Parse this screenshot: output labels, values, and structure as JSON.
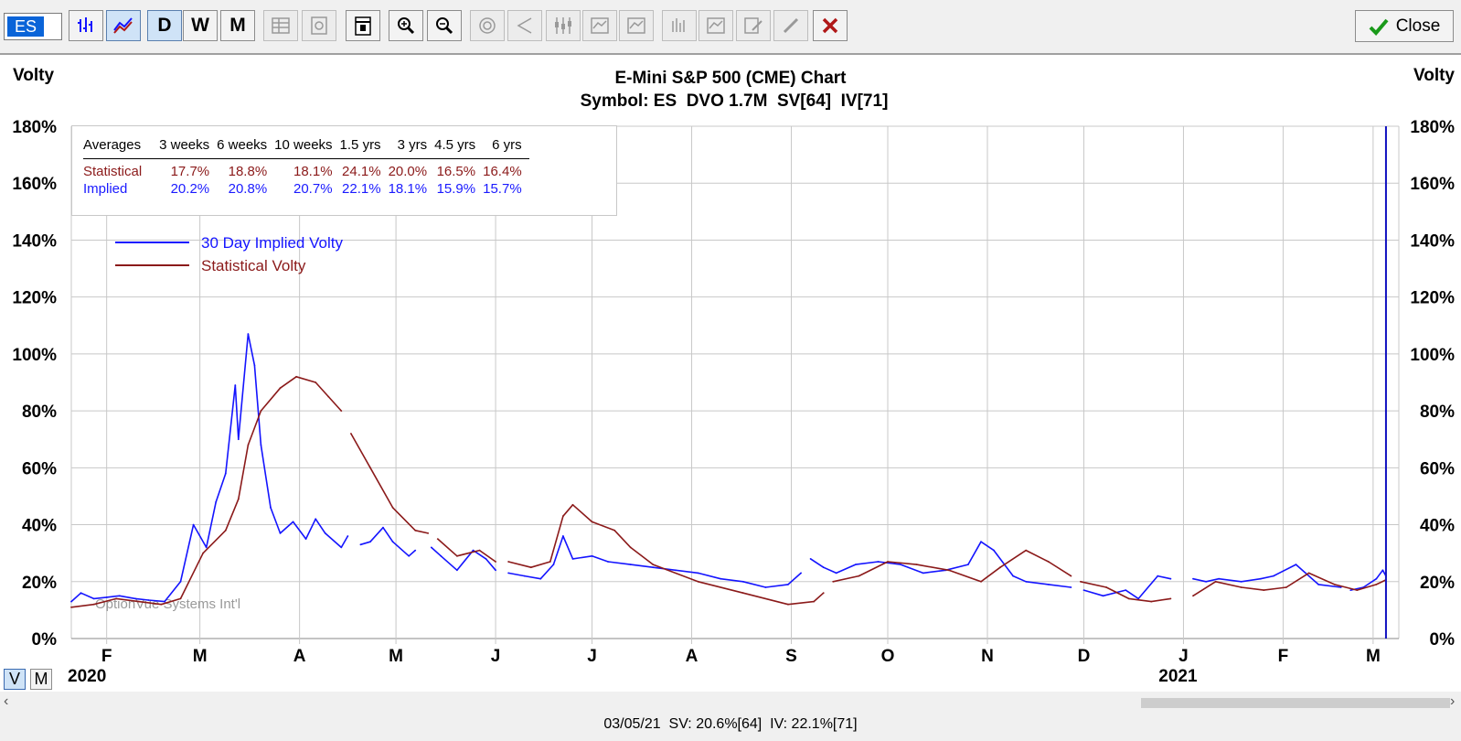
{
  "toolbar": {
    "symbol": "ES",
    "buttons": [
      {
        "name": "bar-chart-button",
        "icon": "bar-chart-icon",
        "label": "",
        "state": "normal"
      },
      {
        "name": "line-chart-button",
        "icon": "volatility-lines-icon",
        "label": "",
        "state": "pressed"
      },
      {
        "name": "daily-button",
        "icon": "",
        "label": "D",
        "state": "pressed"
      },
      {
        "name": "weekly-button",
        "icon": "",
        "label": "W",
        "state": "normal"
      },
      {
        "name": "monthly-button",
        "icon": "",
        "label": "M",
        "state": "normal"
      },
      {
        "name": "table-button",
        "icon": "table-icon",
        "label": "",
        "state": "disabled"
      },
      {
        "name": "settings-button",
        "icon": "gear-doc-icon",
        "label": "",
        "state": "disabled"
      },
      {
        "name": "calendar-button",
        "icon": "calendar-icon",
        "label": "",
        "state": "normal"
      },
      {
        "name": "zoom-in-button",
        "icon": "zoom-in-icon",
        "label": "",
        "state": "normal"
      },
      {
        "name": "zoom-out-button",
        "icon": "zoom-out-icon",
        "label": "",
        "state": "normal"
      },
      {
        "name": "target-button",
        "icon": "target-icon",
        "label": "",
        "state": "disabled"
      },
      {
        "name": "angle-button",
        "icon": "angle-icon",
        "label": "",
        "state": "disabled"
      },
      {
        "name": "candles-button",
        "icon": "candles-icon",
        "label": "",
        "state": "disabled"
      },
      {
        "name": "study-button-1",
        "icon": "study-icon",
        "label": "",
        "state": "disabled"
      },
      {
        "name": "study-button-2",
        "icon": "study-icon",
        "label": "",
        "state": "disabled"
      },
      {
        "name": "bars-button",
        "icon": "bars-icon",
        "label": "",
        "state": "disabled"
      },
      {
        "name": "study-button-3",
        "icon": "study-icon",
        "label": "",
        "state": "disabled"
      },
      {
        "name": "edit-button",
        "icon": "edit-doc-icon",
        "label": "",
        "state": "disabled"
      },
      {
        "name": "pencil-button",
        "icon": "pencil-icon",
        "label": "",
        "state": "disabled"
      },
      {
        "name": "delete-button",
        "icon": "red-x-icon",
        "label": "",
        "state": "normal"
      }
    ],
    "close_label": "Close"
  },
  "view_toggle": {
    "v_label": "V",
    "m_label": "M",
    "active": "V"
  },
  "status_text": "03/05/21  SV: 20.6%[64]  IV: 22.1%[71]",
  "watermark": "OptionVue Systems Int'l",
  "averages": {
    "header": [
      "Averages",
      "3 weeks",
      "6 weeks",
      "10 weeks",
      "1.5 yrs",
      "3 yrs",
      "4.5 yrs",
      "6 yrs"
    ],
    "rows": [
      {
        "label": "Statistical",
        "values": [
          "17.7%",
          "18.8%",
          "18.1%",
          "24.1%",
          "20.0%",
          "16.5%",
          "16.4%"
        ]
      },
      {
        "label": "Implied",
        "values": [
          "20.2%",
          "20.8%",
          "20.7%",
          "22.1%",
          "18.1%",
          "15.9%",
          "15.7%"
        ]
      }
    ]
  },
  "colors": {
    "implied": "#1414ff",
    "statistical": "#8b1a1a",
    "grid": "#c8c8c8",
    "cursor": "#1010c0"
  },
  "chart_data": {
    "type": "line",
    "title": "E-Mini S&P 500 (CME) Chart",
    "subtitle": "Symbol: ES  DVO 1.7M  SV[64]  IV[71]",
    "ylabel_left": "Volty",
    "ylabel_right": "Volty",
    "ylim": [
      0,
      180
    ],
    "y_ticks": [
      "0%",
      "20%",
      "40%",
      "60%",
      "80%",
      "100%",
      "120%",
      "140%",
      "160%",
      "180%"
    ],
    "x_range": [
      "2020-01-21",
      "2021-03-09"
    ],
    "x_month_ticks": [
      {
        "date": "2020-02-01",
        "label": "F"
      },
      {
        "date": "2020-03-01",
        "label": "M"
      },
      {
        "date": "2020-04-01",
        "label": "A"
      },
      {
        "date": "2020-05-01",
        "label": "M"
      },
      {
        "date": "2020-06-01",
        "label": "J"
      },
      {
        "date": "2020-07-01",
        "label": "J"
      },
      {
        "date": "2020-08-01",
        "label": "A"
      },
      {
        "date": "2020-09-01",
        "label": "S"
      },
      {
        "date": "2020-10-01",
        "label": "O"
      },
      {
        "date": "2020-11-01",
        "label": "N"
      },
      {
        "date": "2020-12-01",
        "label": "D"
      },
      {
        "date": "2021-01-01",
        "label": "J"
      },
      {
        "date": "2021-02-01",
        "label": "F"
      },
      {
        "date": "2021-03-01",
        "label": "M"
      }
    ],
    "year_labels": [
      {
        "date": "2020-01-21",
        "label": "2020"
      },
      {
        "date": "2021-01-01",
        "label": "2021"
      }
    ],
    "cursor_date": "2021-03-05",
    "legend_position": "top-left",
    "grid": true,
    "series": [
      {
        "name": "30 Day Implied Volty",
        "key": "implied",
        "segments": [
          [
            [
              "2020-01-21",
              13
            ],
            [
              "2020-01-24",
              16
            ],
            [
              "2020-01-28",
              14
            ],
            [
              "2020-02-01",
              14.5
            ],
            [
              "2020-02-05",
              15
            ],
            [
              "2020-02-10",
              14
            ],
            [
              "2020-02-14",
              13.5
            ],
            [
              "2020-02-19",
              13
            ],
            [
              "2020-02-24",
              20
            ],
            [
              "2020-02-28",
              40
            ],
            [
              "2020-03-03",
              32
            ],
            [
              "2020-03-06",
              48
            ],
            [
              "2020-03-09",
              58
            ],
            [
              "2020-03-12",
              89
            ],
            [
              "2020-03-13",
              70
            ],
            [
              "2020-03-16",
              107
            ],
            [
              "2020-03-18",
              96
            ],
            [
              "2020-03-20",
              68
            ],
            [
              "2020-03-23",
              46
            ],
            [
              "2020-03-26",
              37
            ],
            [
              "2020-03-30",
              41
            ],
            [
              "2020-04-03",
              35
            ],
            [
              "2020-04-06",
              42
            ],
            [
              "2020-04-09",
              37
            ],
            [
              "2020-04-14",
              32
            ],
            [
              "2020-04-16",
              36
            ]
          ],
          [
            [
              "2020-04-20",
              33
            ],
            [
              "2020-04-23",
              34
            ],
            [
              "2020-04-27",
              39
            ],
            [
              "2020-04-30",
              34
            ],
            [
              "2020-05-05",
              29
            ],
            [
              "2020-05-07",
              31
            ]
          ],
          [
            [
              "2020-05-12",
              32
            ],
            [
              "2020-05-15",
              29
            ],
            [
              "2020-05-20",
              24
            ],
            [
              "2020-05-25",
              31
            ],
            [
              "2020-05-29",
              28
            ],
            [
              "2020-06-01",
              24
            ]
          ],
          [
            [
              "2020-06-05",
              23
            ],
            [
              "2020-06-10",
              22
            ],
            [
              "2020-06-15",
              21
            ],
            [
              "2020-06-19",
              26
            ],
            [
              "2020-06-22",
              36
            ],
            [
              "2020-06-25",
              28
            ],
            [
              "2020-07-01",
              29
            ],
            [
              "2020-07-06",
              27
            ],
            [
              "2020-07-13",
              26
            ],
            [
              "2020-07-20",
              25
            ],
            [
              "2020-07-27",
              24
            ],
            [
              "2020-08-03",
              23
            ],
            [
              "2020-08-10",
              21
            ],
            [
              "2020-08-17",
              20
            ],
            [
              "2020-08-24",
              18
            ],
            [
              "2020-08-31",
              19
            ],
            [
              "2020-09-04",
              23
            ]
          ],
          [
            [
              "2020-09-07",
              28
            ],
            [
              "2020-09-11",
              25
            ],
            [
              "2020-09-15",
              23
            ],
            [
              "2020-09-21",
              26
            ],
            [
              "2020-09-28",
              27
            ],
            [
              "2020-10-05",
              26
            ],
            [
              "2020-10-12",
              23
            ],
            [
              "2020-10-19",
              24
            ],
            [
              "2020-10-26",
              26
            ],
            [
              "2020-10-30",
              34
            ],
            [
              "2020-11-03",
              31
            ],
            [
              "2020-11-09",
              22
            ],
            [
              "2020-11-13",
              20
            ],
            [
              "2020-11-20",
              19
            ],
            [
              "2020-11-27",
              18
            ]
          ],
          [
            [
              "2020-12-01",
              17
            ],
            [
              "2020-12-07",
              15
            ],
            [
              "2020-12-14",
              17
            ],
            [
              "2020-12-18",
              14
            ],
            [
              "2020-12-24",
              22
            ],
            [
              "2020-12-28",
              21
            ]
          ],
          [
            [
              "2021-01-04",
              21
            ],
            [
              "2021-01-08",
              20
            ],
            [
              "2021-01-12",
              21
            ],
            [
              "2021-01-19",
              20
            ],
            [
              "2021-01-25",
              21
            ],
            [
              "2021-01-29",
              22
            ],
            [
              "2021-02-05",
              26
            ],
            [
              "2021-02-12",
              19
            ],
            [
              "2021-02-19",
              18
            ]
          ],
          [
            [
              "2021-02-22",
              17
            ],
            [
              "2021-02-26",
              18
            ],
            [
              "2021-03-02",
              21
            ],
            [
              "2021-03-04",
              24
            ],
            [
              "2021-03-05",
              22
            ]
          ]
        ]
      },
      {
        "name": "Statistical Volty",
        "key": "statistical",
        "segments": [
          [
            [
              "2020-01-21",
              11
            ],
            [
              "2020-01-28",
              12
            ],
            [
              "2020-02-04",
              14
            ],
            [
              "2020-02-11",
              13
            ],
            [
              "2020-02-18",
              12
            ],
            [
              "2020-02-24",
              14
            ],
            [
              "2020-03-02",
              30
            ],
            [
              "2020-03-09",
              38
            ],
            [
              "2020-03-13",
              49
            ],
            [
              "2020-03-16",
              68
            ],
            [
              "2020-03-20",
              80
            ],
            [
              "2020-03-26",
              88
            ],
            [
              "2020-03-31",
              92
            ],
            [
              "2020-04-06",
              90
            ],
            [
              "2020-04-10",
              85
            ],
            [
              "2020-04-14",
              80
            ]
          ],
          [
            [
              "2020-04-17",
              72
            ],
            [
              "2020-04-23",
              60
            ],
            [
              "2020-04-30",
              46
            ],
            [
              "2020-05-07",
              38
            ],
            [
              "2020-05-11",
              37
            ]
          ],
          [
            [
              "2020-05-14",
              35
            ],
            [
              "2020-05-20",
              29
            ],
            [
              "2020-05-27",
              31
            ],
            [
              "2020-06-01",
              27
            ]
          ],
          [
            [
              "2020-06-05",
              27
            ],
            [
              "2020-06-12",
              25
            ],
            [
              "2020-06-18",
              27
            ],
            [
              "2020-06-22",
              43
            ],
            [
              "2020-06-25",
              47
            ],
            [
              "2020-07-01",
              41
            ],
            [
              "2020-07-08",
              38
            ],
            [
              "2020-07-13",
              32
            ],
            [
              "2020-07-20",
              26
            ],
            [
              "2020-08-03",
              20
            ],
            [
              "2020-08-17",
              16
            ],
            [
              "2020-08-31",
              12
            ],
            [
              "2020-09-08",
              13
            ],
            [
              "2020-09-11",
              16
            ]
          ],
          [
            [
              "2020-09-14",
              20
            ],
            [
              "2020-09-22",
              22
            ],
            [
              "2020-10-01",
              27
            ],
            [
              "2020-10-10",
              26
            ],
            [
              "2020-10-20",
              24
            ],
            [
              "2020-10-30",
              20
            ],
            [
              "2020-11-05",
              25
            ],
            [
              "2020-11-13",
              31
            ],
            [
              "2020-11-20",
              27
            ],
            [
              "2020-11-27",
              22
            ]
          ],
          [
            [
              "2020-11-30",
              20
            ],
            [
              "2020-12-08",
              18
            ],
            [
              "2020-12-15",
              14
            ],
            [
              "2020-12-22",
              13
            ],
            [
              "2020-12-28",
              14
            ]
          ],
          [
            [
              "2021-01-04",
              15
            ],
            [
              "2021-01-11",
              20
            ],
            [
              "2021-01-19",
              18
            ],
            [
              "2021-01-26",
              17
            ],
            [
              "2021-02-02",
              18
            ],
            [
              "2021-02-09",
              23
            ],
            [
              "2021-02-17",
              19
            ],
            [
              "2021-02-24",
              17
            ],
            [
              "2021-03-02",
              19
            ],
            [
              "2021-03-05",
              20.6
            ]
          ]
        ]
      }
    ]
  }
}
